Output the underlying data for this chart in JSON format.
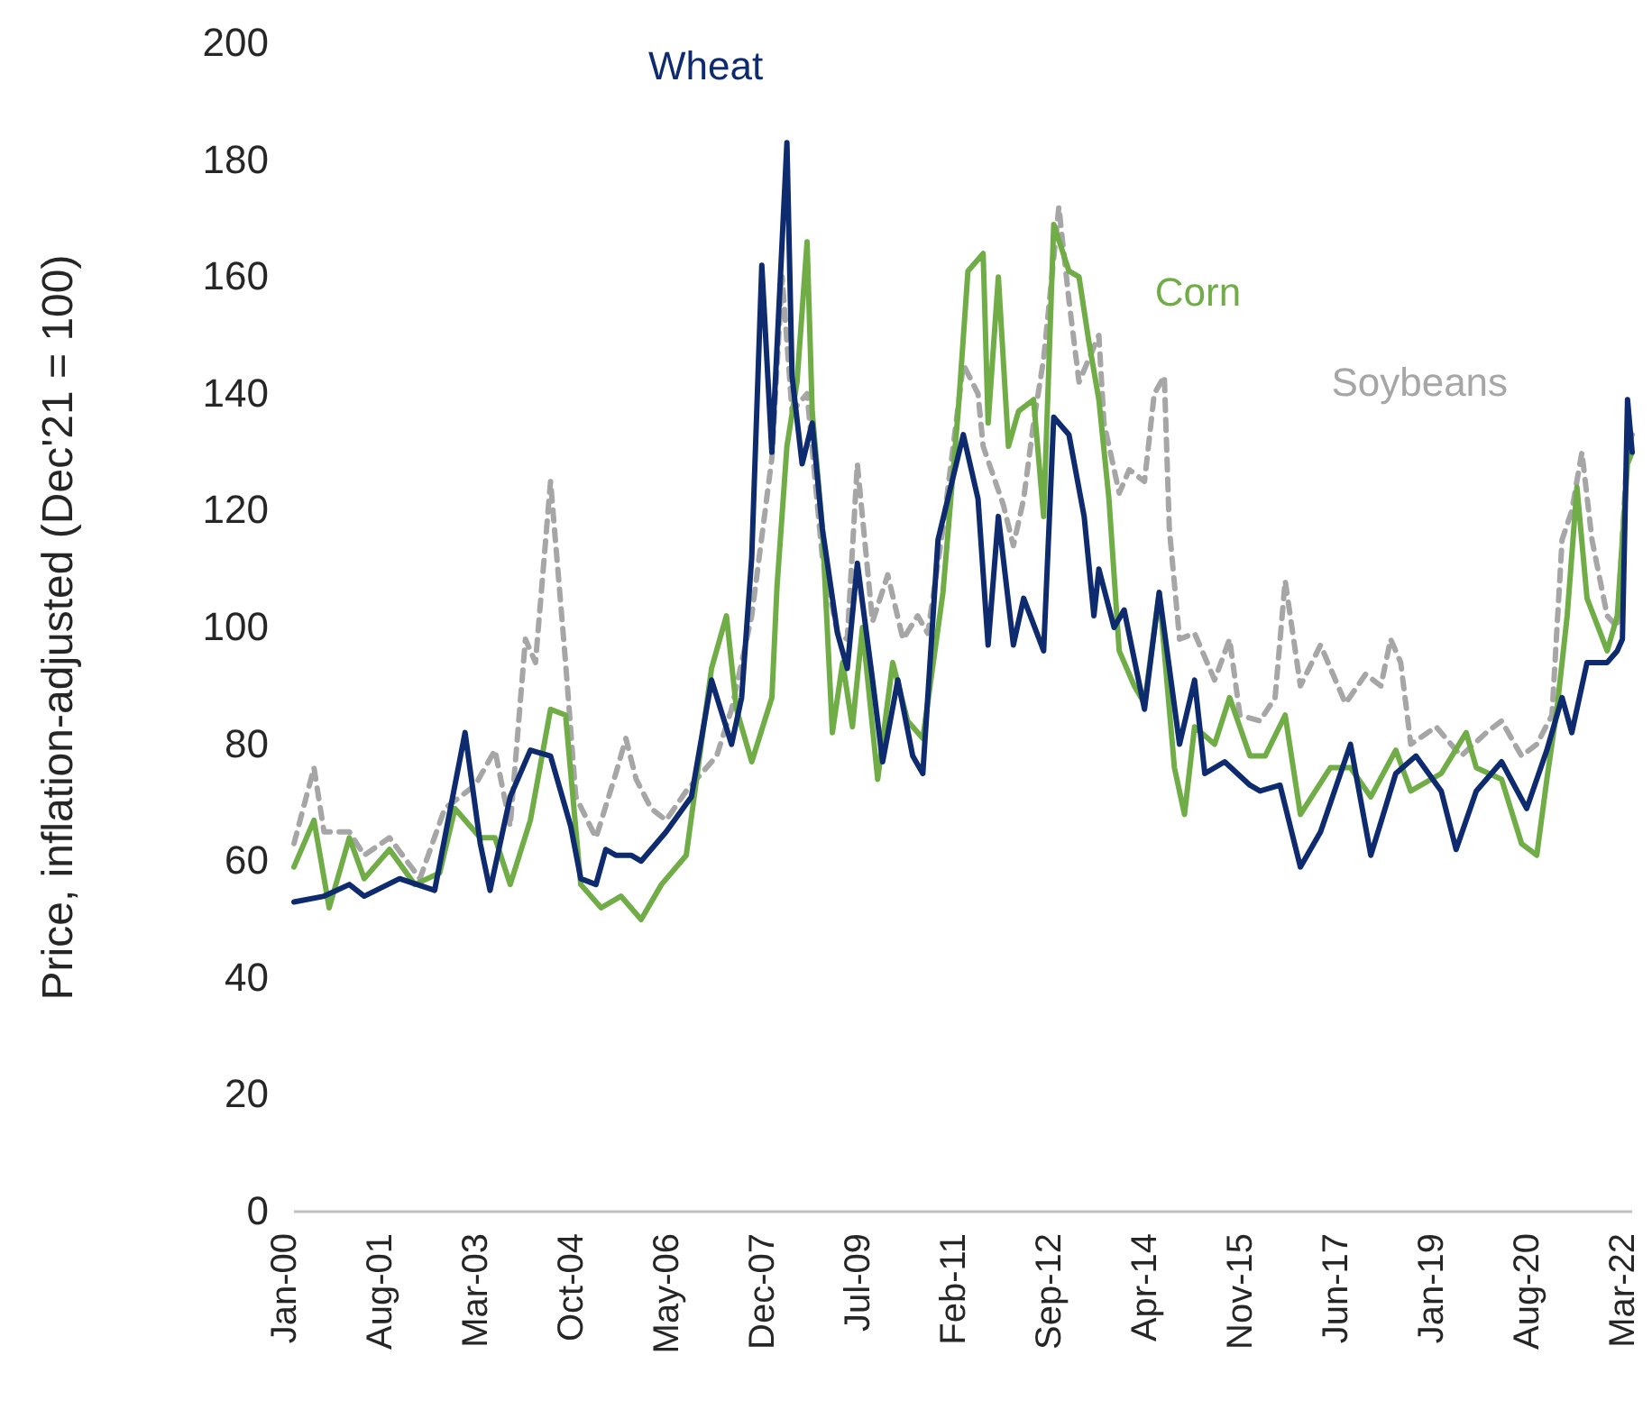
{
  "chart_data": {
    "type": "line",
    "ylabel": "Price, inflation-adjusted  (Dec'21 = 100)",
    "ylim": [
      0,
      200
    ],
    "yticks": [
      0,
      20,
      40,
      60,
      80,
      100,
      120,
      140,
      160,
      180,
      200
    ],
    "xlim": [
      "2000-01",
      "2022-03"
    ],
    "xticks": [
      {
        "value": "2000-01",
        "label": "Jan-00"
      },
      {
        "value": "2001-08",
        "label": "Aug-01"
      },
      {
        "value": "2003-03",
        "label": "Mar-03"
      },
      {
        "value": "2004-10",
        "label": "Oct-04"
      },
      {
        "value": "2006-05",
        "label": "May-06"
      },
      {
        "value": "2007-12",
        "label": "Dec-07"
      },
      {
        "value": "2009-07",
        "label": "Jul-09"
      },
      {
        "value": "2011-02",
        "label": "Feb-11"
      },
      {
        "value": "2012-09",
        "label": "Sep-12"
      },
      {
        "value": "2014-04",
        "label": "Apr-14"
      },
      {
        "value": "2015-11",
        "label": "Nov-15"
      },
      {
        "value": "2017-06",
        "label": "Jun-17"
      },
      {
        "value": "2019-01",
        "label": "Jan-19"
      },
      {
        "value": "2020-08",
        "label": "Aug-20"
      },
      {
        "value": "2022-03",
        "label": "Mar-22"
      }
    ],
    "grid": false,
    "legend": false,
    "marker": "none",
    "series": [
      {
        "name": "Soybeans",
        "color": "#a6a6a6",
        "line_style": "dashed",
        "x": [
          "2000-01",
          "2000-05",
          "2000-07",
          "2000-12",
          "2001-03",
          "2001-08",
          "2002-02",
          "2002-07",
          "2003-01",
          "2003-05",
          "2003-08",
          "2003-11",
          "2004-01",
          "2004-04",
          "2004-07",
          "2004-09",
          "2005-01",
          "2005-05",
          "2005-07",
          "2005-09",
          "2005-12",
          "2006-03",
          "2006-07",
          "2007-01",
          "2007-04",
          "2007-08",
          "2007-12",
          "2008-02",
          "2008-04",
          "2008-07",
          "2008-10",
          "2009-01",
          "2009-03",
          "2009-05",
          "2009-08",
          "2009-11",
          "2010-02",
          "2010-05",
          "2010-07",
          "2010-10",
          "2011-02",
          "2011-05",
          "2011-06",
          "2011-10",
          "2011-12",
          "2012-02",
          "2012-04",
          "2012-06",
          "2012-09",
          "2012-11",
          "2013-01",
          "2013-05",
          "2013-06",
          "2013-09",
          "2013-11",
          "2014-02",
          "2014-04",
          "2014-06",
          "2014-07",
          "2014-09",
          "2014-12",
          "2015-04",
          "2015-07",
          "2015-09",
          "2016-01",
          "2016-04",
          "2016-06",
          "2016-09",
          "2017-01",
          "2017-04",
          "2017-06",
          "2017-10",
          "2018-01",
          "2018-03",
          "2018-05",
          "2018-07",
          "2018-12",
          "2019-05",
          "2019-10",
          "2020-01",
          "2020-05",
          "2020-08",
          "2020-11",
          "2021-01",
          "2021-03",
          "2021-05",
          "2021-07",
          "2021-10",
          "2021-12",
          "2022-02",
          "2022-03"
        ],
        "values": [
          63,
          76,
          65,
          65,
          61,
          64,
          57,
          69,
          73,
          79,
          66,
          98,
          94,
          125,
          94,
          71,
          64,
          75,
          81,
          74,
          69,
          67,
          72,
          78,
          86,
          102,
          129,
          160,
          137,
          140,
          112,
          99,
          98,
          128,
          101,
          109,
          98,
          102,
          99,
          117,
          145,
          140,
          131,
          121,
          114,
          122,
          135,
          146,
          172,
          156,
          142,
          150,
          135,
          123,
          127,
          125,
          140,
          143,
          117,
          98,
          99,
          91,
          98,
          85,
          84,
          88,
          108,
          90,
          97,
          91,
          87,
          92,
          90,
          98,
          94,
          80,
          83,
          78,
          82,
          84,
          78,
          80,
          85,
          115,
          120,
          130,
          115,
          102,
          100,
          131,
          133
        ]
      },
      {
        "name": "Corn",
        "color": "#70ad47",
        "line_style": "solid",
        "x": [
          "2000-01",
          "2000-05",
          "2000-08",
          "2000-12",
          "2001-03",
          "2001-08",
          "2002-01",
          "2002-06",
          "2002-09",
          "2003-02",
          "2003-05",
          "2003-08",
          "2003-12",
          "2004-04",
          "2004-07",
          "2004-10",
          "2005-02",
          "2005-06",
          "2005-10",
          "2006-02",
          "2006-07",
          "2006-12",
          "2007-03",
          "2007-05",
          "2007-08",
          "2007-12",
          "2008-01",
          "2008-03",
          "2008-05",
          "2008-07",
          "2008-08",
          "2008-10",
          "2008-12",
          "2009-02",
          "2009-04",
          "2009-06",
          "2009-09",
          "2009-12",
          "2010-03",
          "2010-06",
          "2010-10",
          "2011-01",
          "2011-03",
          "2011-06",
          "2011-07",
          "2011-09",
          "2011-11",
          "2012-01",
          "2012-04",
          "2012-06",
          "2012-08",
          "2012-11",
          "2013-01",
          "2013-03",
          "2013-05",
          "2013-07",
          "2013-09",
          "2013-12",
          "2014-02",
          "2014-05",
          "2014-08",
          "2014-10",
          "2014-12",
          "2015-04",
          "2015-07",
          "2015-11",
          "2016-02",
          "2016-06",
          "2016-09",
          "2017-03",
          "2017-07",
          "2017-11",
          "2018-04",
          "2018-07",
          "2019-01",
          "2019-06",
          "2019-08",
          "2020-01",
          "2020-05",
          "2020-08",
          "2020-10",
          "2020-12",
          "2021-02",
          "2021-04",
          "2021-06",
          "2021-10",
          "2021-12",
          "2022-02",
          "2022-03"
        ],
        "values": [
          59,
          67,
          52,
          64,
          57,
          62,
          56,
          58,
          69,
          64,
          64,
          56,
          67,
          86,
          85,
          56,
          52,
          54,
          50,
          56,
          61,
          93,
          102,
          86,
          77,
          88,
          107,
          131,
          142,
          166,
          137,
          117,
          82,
          94,
          83,
          100,
          74,
          94,
          84,
          81,
          106,
          137,
          161,
          164,
          135,
          160,
          131,
          137,
          139,
          119,
          169,
          161,
          160,
          149,
          139,
          122,
          96,
          90,
          87,
          106,
          76,
          68,
          83,
          80,
          88,
          78,
          78,
          85,
          68,
          76,
          76,
          71,
          79,
          72,
          75,
          82,
          76,
          74,
          63,
          61,
          74,
          86,
          102,
          124,
          105,
          96,
          102,
          128,
          130
        ]
      },
      {
        "name": "Wheat",
        "color": "#0d2b6e",
        "line_style": "solid",
        "x": [
          "2000-01",
          "2000-07",
          "2000-12",
          "2001-03",
          "2001-10",
          "2002-05",
          "2002-11",
          "2003-02",
          "2003-04",
          "2003-08",
          "2003-12",
          "2004-04",
          "2004-08",
          "2004-10",
          "2005-01",
          "2005-03",
          "2005-05",
          "2005-08",
          "2005-10",
          "2006-03",
          "2006-08",
          "2006-12",
          "2007-04",
          "2007-06",
          "2007-08",
          "2007-10",
          "2007-12",
          "2008-01",
          "2008-03",
          "2008-04",
          "2008-06",
          "2008-08",
          "2008-10",
          "2009-01",
          "2009-03",
          "2009-05",
          "2009-08",
          "2009-10",
          "2010-01",
          "2010-04",
          "2010-06",
          "2010-09",
          "2011-02",
          "2011-05",
          "2011-07",
          "2011-09",
          "2011-12",
          "2012-02",
          "2012-06",
          "2012-08",
          "2012-11",
          "2013-02",
          "2013-04",
          "2013-05",
          "2013-08",
          "2013-10",
          "2014-02",
          "2014-05",
          "2014-09",
          "2014-12",
          "2015-02",
          "2015-06",
          "2015-11",
          "2016-01",
          "2016-05",
          "2016-09",
          "2017-01",
          "2017-07",
          "2017-11",
          "2018-04",
          "2018-08",
          "2019-01",
          "2019-04",
          "2019-08",
          "2020-01",
          "2020-06",
          "2020-10",
          "2021-01",
          "2021-03",
          "2021-06",
          "2021-10",
          "2021-12",
          "2022-01",
          "2022-02",
          "2022-03"
        ],
        "values": [
          53,
          54,
          56,
          54,
          57,
          55,
          82,
          63,
          55,
          71,
          79,
          78,
          66,
          57,
          56,
          62,
          61,
          61,
          60,
          65,
          71,
          91,
          80,
          88,
          112,
          162,
          130,
          148,
          183,
          143,
          128,
          135,
          117,
          99,
          93,
          111,
          91,
          77,
          91,
          78,
          75,
          115,
          133,
          122,
          97,
          119,
          97,
          105,
          96,
          136,
          133,
          119,
          102,
          110,
          100,
          103,
          86,
          106,
          80,
          91,
          75,
          77,
          73,
          72,
          73,
          59,
          65,
          80,
          61,
          75,
          78,
          72,
          62,
          72,
          77,
          69,
          79,
          88,
          82,
          94,
          94,
          96,
          98,
          139,
          130
        ]
      }
    ]
  }
}
